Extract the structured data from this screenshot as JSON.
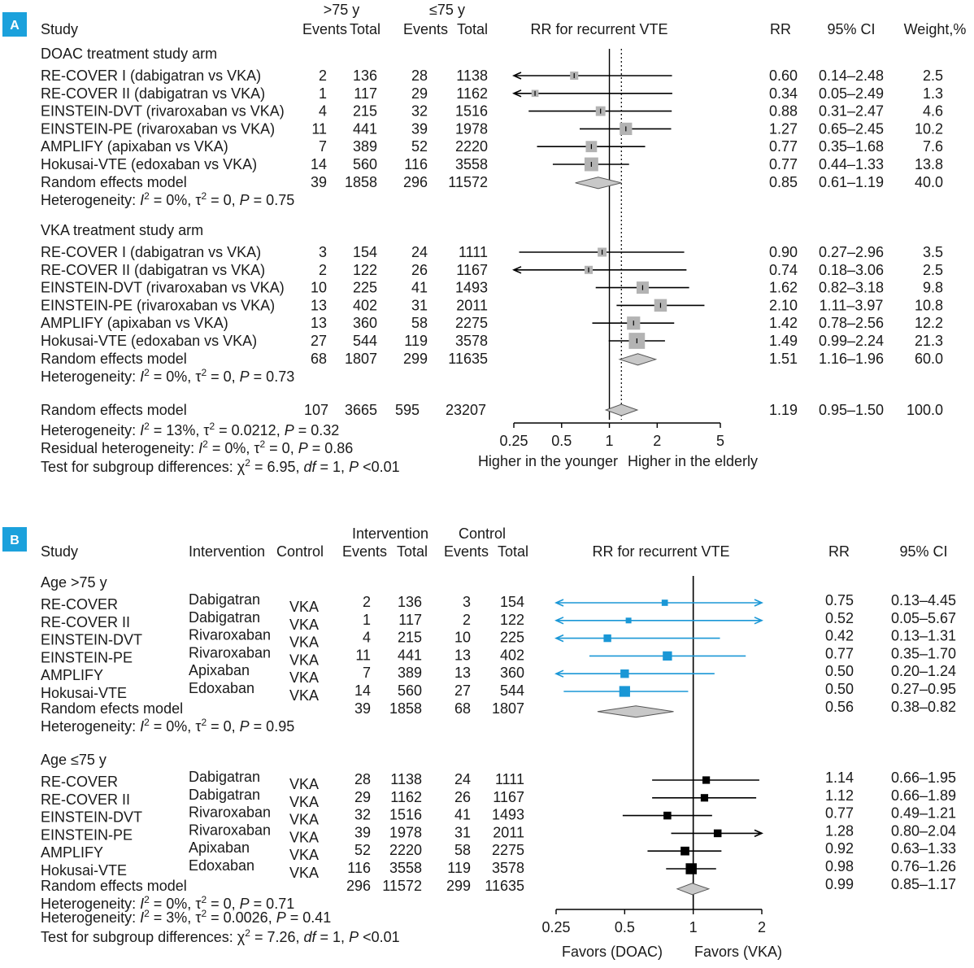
{
  "panel_a": {
    "label": "A",
    "headers": {
      "study": "Study",
      "group1": ">75 y",
      "group2": "≤75 y",
      "events1": "Events",
      "total1": "Total",
      "events2": "Events",
      "total2": "Total",
      "plot_title": "RR for recurrent VTE",
      "rr": "RR",
      "ci": "95% CI",
      "weight": "Weight,%"
    },
    "subgroups": [
      {
        "title": "DOAC treatment study arm",
        "studies": [
          {
            "name": "RE-COVER I (dabigatran vs VKA)",
            "e1": "2",
            "t1": "136",
            "e2": "28",
            "t2": "1138",
            "rr": "0.60",
            "ci": "0.14–2.48",
            "weight": "2.5"
          },
          {
            "name": "RE-COVER II (dabigatran vs VKA)",
            "e1": "1",
            "t1": "117",
            "e2": "29",
            "t2": "1162",
            "rr": "0.34",
            "ci": "0.05–2.49",
            "weight": "1.3"
          },
          {
            "name": "EINSTEIN-DVT (rivaroxaban vs VKA)",
            "e1": "4",
            "t1": "215",
            "e2": "32",
            "t2": "1516",
            "rr": "0.88",
            "ci": "0.31–2.47",
            "weight": "4.6"
          },
          {
            "name": "EINSTEIN-PE (rivaroxaban vs VKA)",
            "e1": "11",
            "t1": "441",
            "e2": "39",
            "t2": "1978",
            "rr": "1.27",
            "ci": "0.65–2.45",
            "weight": "10.2"
          },
          {
            "name": "AMPLIFY (apixaban vs VKA)",
            "e1": "7",
            "t1": "389",
            "e2": "52",
            "t2": "2220",
            "rr": "0.77",
            "ci": "0.35–1.68",
            "weight": "7.6"
          },
          {
            "name": "Hokusai-VTE (edoxaban vs VKA)",
            "e1": "14",
            "t1": "560",
            "e2": "116",
            "t2": "3558",
            "rr": "0.77",
            "ci": "0.44–1.33",
            "weight": "13.8"
          }
        ],
        "pooled": {
          "name": "Random effects model",
          "e1": "39",
          "t1": "1858",
          "e2": "296",
          "t2": "11572",
          "rr": "0.85",
          "ci": "0.61–1.19",
          "weight": "40.0"
        },
        "heterogeneity": {
          "i2": "0%",
          "tau2": "0",
          "p": "0.75"
        }
      },
      {
        "title": "VKA treatment study arm",
        "studies": [
          {
            "name": "RE-COVER I (dabigatran vs VKA)",
            "e1": "3",
            "t1": "154",
            "e2": "24",
            "t2": "1111",
            "rr": "0.90",
            "ci": "0.27–2.96",
            "weight": "3.5"
          },
          {
            "name": "RE-COVER II (dabigatran vs VKA)",
            "e1": "2",
            "t1": "122",
            "e2": "26",
            "t2": "1167",
            "rr": "0.74",
            "ci": "0.18–3.06",
            "weight": "2.5"
          },
          {
            "name": "EINSTEIN-DVT (rivaroxaban vs VKA)",
            "e1": "10",
            "t1": "225",
            "e2": "41",
            "t2": "1493",
            "rr": "1.62",
            "ci": "0.82–3.18",
            "weight": "9.8"
          },
          {
            "name": "EINSTEIN-PE (rivaroxaban vs VKA)",
            "e1": "13",
            "t1": "402",
            "e2": "31",
            "t2": "2011",
            "rr": "2.10",
            "ci": "1.11–3.97",
            "weight": "10.8"
          },
          {
            "name": "AMPLIFY (apixaban vs VKA)",
            "e1": "13",
            "t1": "360",
            "e2": "58",
            "t2": "2275",
            "rr": "1.42",
            "ci": "0.78–2.56",
            "weight": "12.2"
          },
          {
            "name": "Hokusai-VTE (edoxaban vs VKA)",
            "e1": "27",
            "t1": "544",
            "e2": "119",
            "t2": "3578",
            "rr": "1.49",
            "ci": "0.99–2.24",
            "weight": "21.3"
          }
        ],
        "pooled": {
          "name": "Random effects model",
          "e1": "68",
          "t1": "1807",
          "e2": "299",
          "t2": "11635",
          "rr": "1.51",
          "ci": "1.16–1.96",
          "weight": "60.0"
        },
        "heterogeneity": {
          "i2": "0%",
          "tau2": "0",
          "p": "0.73"
        }
      }
    ],
    "overall": {
      "name": "Random effects model",
      "e1": "107",
      "t1": "3665",
      "e2": "595",
      "t2": "23207",
      "rr": "1.19",
      "ci": "0.95–1.50",
      "weight": "100.0"
    },
    "footer": {
      "heterogeneity": {
        "i2": "13%",
        "tau2": "0.0212",
        "p": "0.32"
      },
      "residual": {
        "i2": "0%",
        "tau2": "0",
        "p": "0.86"
      },
      "subgroup_test": {
        "chi2": "6.95",
        "df": "1",
        "p": "<0.01"
      }
    },
    "axis": {
      "ticks": [
        "0.25",
        "0.5",
        "1",
        "2",
        "5"
      ],
      "left_label": "Higher in the younger",
      "right_label": "Higher in the elderly"
    }
  },
  "panel_b": {
    "label": "B",
    "headers": {
      "study": "Study",
      "intervention": "Intervention",
      "control": "Control",
      "group1": "Intervention",
      "group2": "Control",
      "events1": "Events",
      "total1": "Total",
      "events2": "Events",
      "total2": "Total",
      "plot_title": "RR for recurrent VTE",
      "rr": "RR",
      "ci": "95% CI"
    },
    "subgroups": [
      {
        "title": "Age >75 y",
        "studies": [
          {
            "name": "RE-COVER",
            "drug": "Dabigatran",
            "ctrl": "VKA",
            "e1": "2",
            "t1": "136",
            "e2": "3",
            "t2": "154",
            "rr": "0.75",
            "ci": "0.13–4.45"
          },
          {
            "name": "RE-COVER II",
            "drug": "Dabigatran",
            "ctrl": "VKA",
            "e1": "1",
            "t1": "117",
            "e2": "2",
            "t2": "122",
            "rr": "0.52",
            "ci": "0.05–5.67"
          },
          {
            "name": "EINSTEIN-DVT",
            "drug": "Rivaroxaban",
            "ctrl": "VKA",
            "e1": "4",
            "t1": "215",
            "e2": "10",
            "t2": "225",
            "rr": "0.42",
            "ci": "0.13–1.31"
          },
          {
            "name": "EINSTEIN-PE",
            "drug": "Rivaroxaban",
            "ctrl": "VKA",
            "e1": "11",
            "t1": "441",
            "e2": "13",
            "t2": "402",
            "rr": "0.77",
            "ci": "0.35–1.70"
          },
          {
            "name": "AMPLIFY",
            "drug": "Apixaban",
            "ctrl": "VKA",
            "e1": "7",
            "t1": "389",
            "e2": "13",
            "t2": "360",
            "rr": "0.50",
            "ci": "0.20–1.24"
          },
          {
            "name": "Hokusai-VTE",
            "drug": "Edoxaban",
            "ctrl": "VKA",
            "e1": "14",
            "t1": "560",
            "e2": "27",
            "t2": "544",
            "rr": "0.50",
            "ci": "0.27–0.95"
          }
        ],
        "pooled": {
          "name": "Random efects model",
          "e1": "39",
          "t1": "1858",
          "e2": "68",
          "t2": "1807",
          "rr": "0.56",
          "ci": "0.38–0.82"
        },
        "heterogeneity": {
          "i2": "0%",
          "tau2": "0",
          "p": "0.95"
        }
      },
      {
        "title": "Age ≤75 y",
        "studies": [
          {
            "name": "RE-COVER",
            "drug": "Dabigatran",
            "ctrl": "VKA",
            "e1": "28",
            "t1": "1138",
            "e2": "24",
            "t2": "1111",
            "rr": "1.14",
            "ci": "0.66–1.95"
          },
          {
            "name": "RE-COVER II",
            "drug": "Dabigatran",
            "ctrl": "VKA",
            "e1": "29",
            "t1": "1162",
            "e2": "26",
            "t2": "1167",
            "rr": "1.12",
            "ci": "0.66–1.89"
          },
          {
            "name": "EINSTEIN-DVT",
            "drug": "Rivaroxaban",
            "ctrl": "VKA",
            "e1": "32",
            "t1": "1516",
            "e2": "41",
            "t2": "1493",
            "rr": "0.77",
            "ci": "0.49–1.21"
          },
          {
            "name": "EINSTEIN-PE",
            "drug": "Rivaroxaban",
            "ctrl": "VKA",
            "e1": "39",
            "t1": "1978",
            "e2": "31",
            "t2": "2011",
            "rr": "1.28",
            "ci": "0.80–2.04"
          },
          {
            "name": "AMPLIFY",
            "drug": "Apixaban",
            "ctrl": "VKA",
            "e1": "52",
            "t1": "2220",
            "e2": "58",
            "t2": "2275",
            "rr": "0.92",
            "ci": "0.63–1.33"
          },
          {
            "name": "Hokusai-VTE",
            "drug": "Edoxaban",
            "ctrl": "VKA",
            "e1": "116",
            "t1": "3558",
            "e2": "119",
            "t2": "3578",
            "rr": "0.98",
            "ci": "0.76–1.26"
          }
        ],
        "pooled": {
          "name": "Random effects model",
          "e1": "296",
          "t1": "11572",
          "e2": "299",
          "t2": "11635",
          "rr": "0.99",
          "ci": "0.85–1.17"
        },
        "heterogeneity": {
          "i2": "0%",
          "tau2": "0",
          "p": "0.71"
        }
      }
    ],
    "footer": {
      "heterogeneity": {
        "i2": "3%",
        "tau2": "0.0026",
        "p": "0.41"
      },
      "subgroup_test": {
        "chi2": "7.26",
        "df": "1",
        "p": "<0.01"
      }
    },
    "axis": {
      "ticks": [
        "0.25",
        "0.5",
        "1",
        "2"
      ],
      "left_label": "Favors (DOAC)",
      "right_label": "Favors (VKA)"
    }
  },
  "colors": {
    "badge": "#1ba1dc",
    "blue_marker": "#1a97d6",
    "black_marker": "#000000",
    "grey_box": "#b3b3b3",
    "diamond": "#c8c8c8"
  },
  "chart_data": [
    {
      "type": "forest",
      "panel": "A",
      "scale": "log",
      "xlim": [
        0.25,
        5
      ],
      "ticks": [
        0.25,
        0.5,
        1,
        2,
        5
      ],
      "reference_line": 1,
      "pooled_dotted_line": 1.19,
      "series": [
        {
          "name": "DOAC treatment study arm",
          "points": [
            {
              "rr": 0.6,
              "lo": 0.14,
              "hi": 2.48,
              "w": 2.5
            },
            {
              "rr": 0.34,
              "lo": 0.05,
              "hi": 2.49,
              "w": 1.3
            },
            {
              "rr": 0.88,
              "lo": 0.31,
              "hi": 2.47,
              "w": 4.6
            },
            {
              "rr": 1.27,
              "lo": 0.65,
              "hi": 2.45,
              "w": 10.2
            },
            {
              "rr": 0.77,
              "lo": 0.35,
              "hi": 1.68,
              "w": 7.6
            },
            {
              "rr": 0.77,
              "lo": 0.44,
              "hi": 1.33,
              "w": 13.8
            }
          ],
          "pooled": {
            "rr": 0.85,
            "lo": 0.61,
            "hi": 1.19
          }
        },
        {
          "name": "VKA treatment study arm",
          "points": [
            {
              "rr": 0.9,
              "lo": 0.27,
              "hi": 2.96,
              "w": 3.5
            },
            {
              "rr": 0.74,
              "lo": 0.18,
              "hi": 3.06,
              "w": 2.5
            },
            {
              "rr": 1.62,
              "lo": 0.82,
              "hi": 3.18,
              "w": 9.8
            },
            {
              "rr": 2.1,
              "lo": 1.11,
              "hi": 3.97,
              "w": 10.8
            },
            {
              "rr": 1.42,
              "lo": 0.78,
              "hi": 2.56,
              "w": 12.2
            },
            {
              "rr": 1.49,
              "lo": 0.99,
              "hi": 2.24,
              "w": 21.3
            }
          ],
          "pooled": {
            "rr": 1.51,
            "lo": 1.16,
            "hi": 1.96
          }
        }
      ],
      "overall": {
        "rr": 1.19,
        "lo": 0.95,
        "hi": 1.5
      }
    },
    {
      "type": "forest",
      "panel": "B",
      "scale": "log",
      "xlim": [
        0.25,
        2
      ],
      "ticks": [
        0.25,
        0.5,
        1,
        2
      ],
      "reference_line": 1,
      "series": [
        {
          "name": "Age >75 y",
          "color": "#1a97d6",
          "points": [
            {
              "rr": 0.75,
              "lo": 0.13,
              "hi": 4.45,
              "w": 1.5
            },
            {
              "rr": 0.52,
              "lo": 0.05,
              "hi": 5.67,
              "w": 1.0
            },
            {
              "rr": 0.42,
              "lo": 0.13,
              "hi": 1.31,
              "w": 3.2
            },
            {
              "rr": 0.77,
              "lo": 0.35,
              "hi": 1.7,
              "w": 6.0
            },
            {
              "rr": 0.5,
              "lo": 0.2,
              "hi": 1.24,
              "w": 4.6
            },
            {
              "rr": 0.5,
              "lo": 0.27,
              "hi": 0.95,
              "w": 9.5
            }
          ],
          "pooled": {
            "rr": 0.56,
            "lo": 0.38,
            "hi": 0.82
          }
        },
        {
          "name": "Age ≤75 y",
          "color": "#000000",
          "points": [
            {
              "rr": 1.14,
              "lo": 0.66,
              "hi": 1.95,
              "w": 3.0
            },
            {
              "rr": 1.12,
              "lo": 0.66,
              "hi": 1.89,
              "w": 3.0
            },
            {
              "rr": 0.77,
              "lo": 0.49,
              "hi": 1.21,
              "w": 3.4
            },
            {
              "rr": 1.28,
              "lo": 0.8,
              "hi": 2.04,
              "w": 3.4
            },
            {
              "rr": 0.92,
              "lo": 0.63,
              "hi": 1.33,
              "w": 5.0
            },
            {
              "rr": 0.98,
              "lo": 0.76,
              "hi": 1.26,
              "w": 10.0
            }
          ],
          "pooled": {
            "rr": 0.99,
            "lo": 0.85,
            "hi": 1.17
          }
        }
      ]
    }
  ]
}
